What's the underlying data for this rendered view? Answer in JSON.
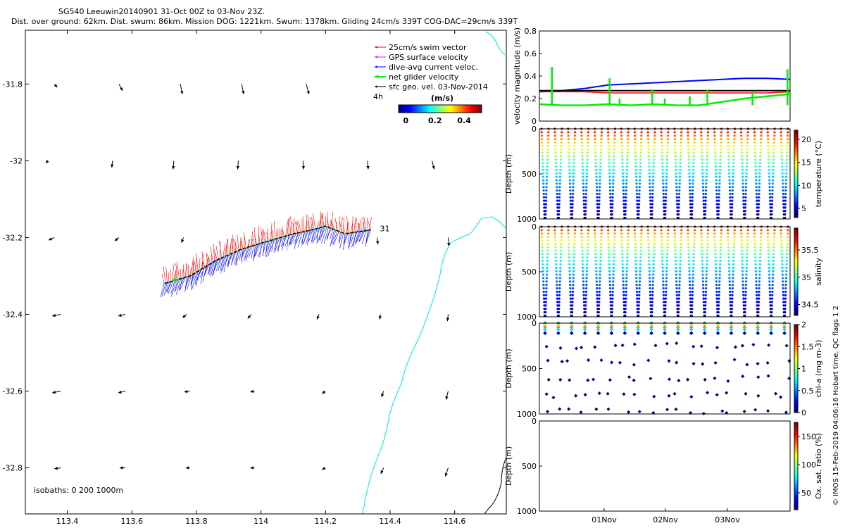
{
  "header": {
    "line1": "SG540 Leeuwin20140901 31-Oct 00Z to 03-Nov 23Z.",
    "line2": "Dist. over ground: 62km. Dist. swum: 86km. Mission DOG: 1221km. Swum: 1378km. Gliding 24cm/s 339T COG-DAC=29cm/s 339T"
  },
  "copyright": "© IMOS 15-Feb-2019 04:06:16 Hobart time. QC flags 1  2",
  "colors": {
    "swim": "#ff0000",
    "gps": "#ff00ff",
    "dac": "#0000ff",
    "net": "#00ee00",
    "geo": "#000000",
    "coast": "#00e5ee",
    "track": "#000000"
  },
  "chart_data": [
    {
      "type": "scatter",
      "name": "map",
      "xlabel": "",
      "ylabel": "",
      "xlim": [
        113.27,
        114.76
      ],
      "ylim": [
        -32.92,
        -31.66
      ],
      "x_ticks": [
        "113.4",
        "113.6",
        "113.8",
        "114",
        "114.2",
        "114.4",
        "114.6"
      ],
      "x_tick_values": [
        113.4,
        113.6,
        113.8,
        114.0,
        114.2,
        114.4,
        114.6
      ],
      "y_ticks": [
        "-31.8",
        "-32",
        "-32.2",
        "-32.4",
        "-32.6",
        "-32.8"
      ],
      "y_tick_values": [
        -31.8,
        -32.0,
        -32.2,
        -32.4,
        -32.6,
        -32.8
      ],
      "legend": {
        "placement": "top-right",
        "entries": [
          "25cm/s swim vector",
          "GPS surface velocity",
          "dive-avg current veloc.",
          "net glider velocity",
          "sfc geo. vel. 03-Nov-2014"
        ],
        "scale_label": "4h",
        "colorbar_title": "(m/s)",
        "colorbar_ticks": [
          "0",
          "0.2",
          "0.4"
        ],
        "colorbar_tick_values": [
          0,
          0.2,
          0.4
        ],
        "colorbar_range": [
          -0.05,
          0.52
        ]
      },
      "isobaths_label": "isobaths: 0   200  1000m",
      "track_end_label": "31",
      "track": [
        [
          113.7,
          -32.32
        ],
        [
          113.78,
          -32.3
        ],
        [
          113.86,
          -32.26
        ],
        [
          113.94,
          -32.23
        ],
        [
          114.02,
          -32.21
        ],
        [
          114.1,
          -32.19
        ],
        [
          114.16,
          -32.18
        ],
        [
          114.2,
          -32.17
        ],
        [
          114.26,
          -32.19
        ],
        [
          114.34,
          -32.18
        ]
      ],
      "geo_vectors": [
        [
          113.36,
          -31.8,
          0.04,
          -0.04
        ],
        [
          113.56,
          -31.8,
          0.05,
          -0.08
        ],
        [
          113.75,
          -31.8,
          0.03,
          -0.12
        ],
        [
          113.94,
          -31.8,
          0.03,
          -0.12
        ],
        [
          114.14,
          -31.8,
          0.04,
          -0.12
        ],
        [
          113.34,
          -32.0,
          -0.03,
          -0.03
        ],
        [
          113.54,
          -32.0,
          -0.01,
          -0.08
        ],
        [
          113.73,
          -32.0,
          -0.01,
          -0.1
        ],
        [
          113.93,
          -32.0,
          -0.01,
          -0.1
        ],
        [
          114.13,
          -32.0,
          0.01,
          -0.1
        ],
        [
          114.33,
          -32.0,
          0.01,
          -0.1
        ],
        [
          114.53,
          -32.0,
          0.03,
          -0.1
        ],
        [
          113.36,
          -32.2,
          -0.08,
          -0.03
        ],
        [
          113.56,
          -32.2,
          -0.06,
          -0.04
        ],
        [
          113.76,
          -32.2,
          -0.03,
          -0.06
        ],
        [
          114.36,
          -32.2,
          0.01,
          -0.08
        ],
        [
          114.58,
          -32.2,
          0.01,
          -0.1
        ],
        [
          113.38,
          -32.4,
          -0.12,
          -0.02
        ],
        [
          113.58,
          -32.4,
          -0.1,
          -0.02
        ],
        [
          113.77,
          -32.4,
          -0.06,
          -0.04
        ],
        [
          113.97,
          -32.4,
          -0.05,
          -0.05
        ],
        [
          114.18,
          -32.4,
          -0.03,
          -0.06
        ],
        [
          114.37,
          -32.4,
          -0.01,
          -0.06
        ],
        [
          114.58,
          -32.4,
          -0.01,
          -0.08
        ],
        [
          113.38,
          -32.6,
          -0.12,
          -0.02
        ],
        [
          113.58,
          -32.6,
          -0.1,
          -0.02
        ],
        [
          113.78,
          -32.6,
          -0.08,
          -0.01
        ],
        [
          113.98,
          -32.6,
          -0.06,
          -0.01
        ],
        [
          114.2,
          -32.6,
          -0.05,
          -0.03
        ],
        [
          114.38,
          -32.6,
          -0.03,
          -0.07
        ],
        [
          114.58,
          -32.6,
          -0.03,
          -0.1
        ],
        [
          113.38,
          -32.8,
          -0.09,
          -0.01
        ],
        [
          113.58,
          -32.8,
          -0.08,
          0.0
        ],
        [
          113.78,
          -32.8,
          -0.06,
          0.0
        ],
        [
          113.98,
          -32.8,
          -0.06,
          0.0
        ],
        [
          114.2,
          -32.8,
          -0.05,
          -0.02
        ],
        [
          114.38,
          -32.8,
          -0.04,
          -0.07
        ],
        [
          114.58,
          -32.8,
          -0.04,
          -0.1
        ]
      ],
      "net_vector": [
        113.74,
        -32.31,
        -0.06,
        -0.01
      ]
    },
    {
      "type": "line",
      "name": "velocity",
      "xlabel": "",
      "ylabel": "velocity magnitude (m/s)",
      "ylim": [
        0,
        0.8
      ],
      "y_ticks": [
        "0",
        "0.2",
        "0.4",
        "0.6",
        "0.8"
      ],
      "y_tick_values": [
        0,
        0.2,
        0.4,
        0.6,
        0.8
      ],
      "series": [
        {
          "values": [
            0.26,
            0.27,
            0.29,
            0.32,
            0.33,
            0.34,
            0.35,
            0.36,
            0.37,
            0.38,
            0.38,
            0.37
          ]
        },
        {
          "values": [
            0.27,
            0.27,
            0.27,
            0.27,
            0.27,
            0.27,
            0.27,
            0.27,
            0.27,
            0.27,
            0.27,
            0.27
          ]
        },
        {
          "values": [
            0.26,
            0.26,
            0.26,
            0.25,
            0.25,
            0.25,
            0.25,
            0.25,
            0.25,
            0.25,
            0.25,
            0.26
          ]
        },
        {
          "values": [
            0.15,
            0.14,
            0.14,
            0.15,
            0.14,
            0.15,
            0.14,
            0.14,
            0.17,
            0.2,
            0.22,
            0.24
          ]
        }
      ]
    },
    {
      "type": "scatter",
      "name": "temperature",
      "ylabel": "Depth (m)",
      "clabel": "temperature (°C)",
      "ylim": [
        1000,
        0
      ],
      "y_ticks": [
        "0",
        "500",
        "1000"
      ],
      "y_tick_values": [
        0,
        500,
        1000
      ],
      "clim": [
        3,
        22
      ],
      "c_ticks": [
        "5",
        "10",
        "15",
        "20"
      ],
      "c_tick_values": [
        5,
        10,
        15,
        20
      ]
    },
    {
      "type": "scatter",
      "name": "salinity",
      "ylabel": "Depth (m)",
      "clabel": "salinity",
      "ylim": [
        1000,
        0
      ],
      "y_ticks": [
        "0",
        "500",
        "1000"
      ],
      "y_tick_values": [
        0,
        500,
        1000
      ],
      "clim": [
        34.3,
        35.9
      ],
      "c_ticks": [
        "34.5",
        "35",
        "35.5"
      ],
      "c_tick_values": [
        34.5,
        35,
        35.5
      ]
    },
    {
      "type": "scatter",
      "name": "chl",
      "ylabel": "Depth (m)",
      "clabel": "chl-a (mg m-3)",
      "ylim": [
        1000,
        0
      ],
      "y_ticks": [
        "0",
        "500",
        "1000"
      ],
      "y_tick_values": [
        0,
        500,
        1000
      ],
      "clim": [
        0,
        2
      ],
      "c_ticks": [
        "0",
        "0.5",
        "1",
        "1.5",
        "2"
      ],
      "c_tick_values": [
        0,
        0.5,
        1,
        1.5,
        2
      ]
    },
    {
      "type": "scatter",
      "name": "oxygen",
      "ylabel": "Depth (m)",
      "clabel": "Ox. sat. ratio (%)",
      "xlabel": "",
      "x_ticks": [
        "01Nov",
        "02Nov",
        "03Nov"
      ],
      "ylim": [
        1000,
        0
      ],
      "y_ticks": [
        "0",
        "500",
        "1000"
      ],
      "y_tick_values": [
        0,
        500,
        1000
      ],
      "clim": [
        20,
        175
      ],
      "c_ticks": [
        "50",
        "100",
        "150"
      ],
      "c_tick_values": [
        50,
        100,
        150
      ]
    }
  ]
}
